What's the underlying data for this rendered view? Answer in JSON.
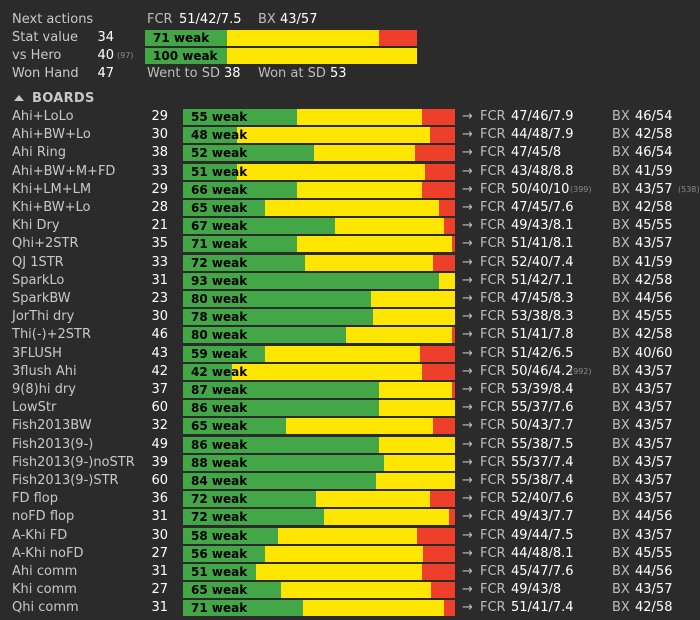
{
  "header": {
    "next_actions_label": "Next actions",
    "fcr_label": "FCR",
    "fcr_value": "51/42/7.5",
    "bx_label": "BX",
    "bx_value": "43/57",
    "stat_value_label": "Stat value",
    "stat_value": "34",
    "stat_bar": {
      "text": "71 weak",
      "green": 0.3,
      "yellow": 0.56,
      "red": 0.14
    },
    "vs_hero_label": "vs Hero",
    "vs_hero_value": "40",
    "vs_hero_sub": "(97)",
    "vs_hero_bar": {
      "text": "100 weak",
      "green": 0.3,
      "yellow": 0.7,
      "red": 0.0
    },
    "won_hand_label": "Won Hand",
    "won_hand_value": "47",
    "went_to_sd_label": "Went to SD",
    "went_to_sd_value": "38",
    "won_at_sd_label": "Won at SD",
    "won_at_sd_value": "53"
  },
  "boards_section_label": "BOARDS",
  "arrow_symbol": "→",
  "boards": [
    {
      "name": "Ahi+LoLo",
      "count": "29",
      "bar": "55 weak",
      "g": 0.42,
      "y": 0.46,
      "r": 0.12,
      "fcr": "47/46/7.9",
      "fcr_sub": "",
      "bx": "46/54",
      "bx_sub": ""
    },
    {
      "name": "Ahi+BW+Lo",
      "count": "30",
      "bar": "48 weak",
      "g": 0.2,
      "y": 0.71,
      "r": 0.09,
      "fcr": "44/48/7.9",
      "fcr_sub": "",
      "bx": "42/58",
      "bx_sub": ""
    },
    {
      "name": "Ahi Ring",
      "count": "38",
      "bar": "52 weak",
      "g": 0.48,
      "y": 0.37,
      "r": 0.15,
      "fcr": "47/45/8",
      "fcr_sub": "",
      "bx": "46/54",
      "bx_sub": ""
    },
    {
      "name": "Ahi+BW+M+FD",
      "count": "33",
      "bar": "51 weak",
      "g": 0.2,
      "y": 0.69,
      "r": 0.11,
      "fcr": "43/48/8.8",
      "fcr_sub": "",
      "bx": "41/59",
      "bx_sub": ""
    },
    {
      "name": "Khi+LM+LM",
      "count": "29",
      "bar": "66 weak",
      "g": 0.42,
      "y": 0.46,
      "r": 0.12,
      "fcr": "50/40/10",
      "fcr_sub": "(399)",
      "bx": "43/57",
      "bx_sub": "(538)"
    },
    {
      "name": "Khi+BW+Lo",
      "count": "28",
      "bar": "65 weak",
      "g": 0.3,
      "y": 0.64,
      "r": 0.06,
      "fcr": "47/45/7.6",
      "fcr_sub": "",
      "bx": "42/58",
      "bx_sub": ""
    },
    {
      "name": "Khi Dry",
      "count": "21",
      "bar": "67 weak",
      "g": 0.56,
      "y": 0.4,
      "r": 0.04,
      "fcr": "49/43/8.1",
      "fcr_sub": "",
      "bx": "45/55",
      "bx_sub": ""
    },
    {
      "name": "Qhi+2STR",
      "count": "35",
      "bar": "71 weak",
      "g": 0.42,
      "y": 0.57,
      "r": 0.01,
      "fcr": "51/41/8.1",
      "fcr_sub": "",
      "bx": "43/57",
      "bx_sub": ""
    },
    {
      "name": "QJ 1STR",
      "count": "33",
      "bar": "72 weak",
      "g": 0.45,
      "y": 0.47,
      "r": 0.08,
      "fcr": "52/40/7.4",
      "fcr_sub": "",
      "bx": "41/59",
      "bx_sub": ""
    },
    {
      "name": "SparkLo",
      "count": "31",
      "bar": "93 weak",
      "g": 0.94,
      "y": 0.06,
      "r": 0.0,
      "fcr": "51/42/7.1",
      "fcr_sub": "",
      "bx": "42/58",
      "bx_sub": ""
    },
    {
      "name": "SparkBW",
      "count": "23",
      "bar": "80 weak",
      "g": 0.69,
      "y": 0.31,
      "r": 0.0,
      "fcr": "47/45/8.3",
      "fcr_sub": "",
      "bx": "44/56",
      "bx_sub": ""
    },
    {
      "name": "JorThi dry",
      "count": "30",
      "bar": "78 weak",
      "g": 0.7,
      "y": 0.3,
      "r": 0.0,
      "fcr": "53/38/8.3",
      "fcr_sub": "",
      "bx": "45/55",
      "bx_sub": ""
    },
    {
      "name": "Thi(-)+2STR",
      "count": "46",
      "bar": "80 weak",
      "g": 0.6,
      "y": 0.39,
      "r": 0.01,
      "fcr": "51/41/7.8",
      "fcr_sub": "",
      "bx": "42/58",
      "bx_sub": ""
    },
    {
      "name": "3FLUSH",
      "count": "43",
      "bar": "59 weak",
      "g": 0.3,
      "y": 0.57,
      "r": 0.13,
      "fcr": "51/42/6.5",
      "fcr_sub": "",
      "bx": "40/60",
      "bx_sub": ""
    },
    {
      "name": "3flush Ahi",
      "count": "42",
      "bar": "42 weak",
      "g": 0.18,
      "y": 0.7,
      "r": 0.12,
      "fcr": "50/46/4.2",
      "fcr_sub": "(992)",
      "bx": "43/57",
      "bx_sub": ""
    },
    {
      "name": "9(8)hi dry",
      "count": "37",
      "bar": "87 weak",
      "g": 0.72,
      "y": 0.27,
      "r": 0.01,
      "fcr": "53/39/8.4",
      "fcr_sub": "",
      "bx": "43/57",
      "bx_sub": ""
    },
    {
      "name": "LowStr",
      "count": "60",
      "bar": "86 weak",
      "g": 0.72,
      "y": 0.28,
      "r": 0.0,
      "fcr": "55/37/7.6",
      "fcr_sub": "",
      "bx": "43/57",
      "bx_sub": ""
    },
    {
      "name": "Fish2013BW",
      "count": "32",
      "bar": "65 weak",
      "g": 0.38,
      "y": 0.54,
      "r": 0.08,
      "fcr": "50/43/7.7",
      "fcr_sub": "",
      "bx": "43/57",
      "bx_sub": ""
    },
    {
      "name": "Fish2013(9-)",
      "count": "49",
      "bar": "86 weak",
      "g": 0.72,
      "y": 0.28,
      "r": 0.0,
      "fcr": "55/38/7.5",
      "fcr_sub": "",
      "bx": "43/57",
      "bx_sub": ""
    },
    {
      "name": "Fish2013(9-)noSTR",
      "count": "39",
      "bar": "88 weak",
      "g": 0.74,
      "y": 0.26,
      "r": 0.0,
      "fcr": "55/37/7.4",
      "fcr_sub": "",
      "bx": "43/57",
      "bx_sub": ""
    },
    {
      "name": "Fish2013(9-)STR",
      "count": "60",
      "bar": "84 weak",
      "g": 0.71,
      "y": 0.29,
      "r": 0.0,
      "fcr": "55/38/7.4",
      "fcr_sub": "",
      "bx": "43/57",
      "bx_sub": ""
    },
    {
      "name": "FD flop",
      "count": "36",
      "bar": "72 weak",
      "g": 0.49,
      "y": 0.42,
      "r": 0.09,
      "fcr": "52/40/7.6",
      "fcr_sub": "",
      "bx": "43/57",
      "bx_sub": ""
    },
    {
      "name": "noFD flop",
      "count": "31",
      "bar": "72 weak",
      "g": 0.52,
      "y": 0.46,
      "r": 0.02,
      "fcr": "49/43/7.7",
      "fcr_sub": "",
      "bx": "44/56",
      "bx_sub": ""
    },
    {
      "name": "A-Khi FD",
      "count": "30",
      "bar": "58 weak",
      "g": 0.35,
      "y": 0.51,
      "r": 0.14,
      "fcr": "49/44/7.5",
      "fcr_sub": "",
      "bx": "43/57",
      "bx_sub": ""
    },
    {
      "name": "A-Khi noFD",
      "count": "27",
      "bar": "56 weak",
      "g": 0.3,
      "y": 0.58,
      "r": 0.12,
      "fcr": "44/48/8.1",
      "fcr_sub": "",
      "bx": "45/55",
      "bx_sub": ""
    },
    {
      "name": "Ahi comm",
      "count": "31",
      "bar": "51 weak",
      "g": 0.27,
      "y": 0.61,
      "r": 0.12,
      "fcr": "45/47/7.6",
      "fcr_sub": "",
      "bx": "44/56",
      "bx_sub": ""
    },
    {
      "name": "Khi comm",
      "count": "27",
      "bar": "65 weak",
      "g": 0.36,
      "y": 0.55,
      "r": 0.09,
      "fcr": "49/43/8",
      "fcr_sub": "",
      "bx": "43/57",
      "bx_sub": ""
    },
    {
      "name": "Qhi comm",
      "count": "31",
      "bar": "71 weak",
      "g": 0.44,
      "y": 0.52,
      "r": 0.04,
      "fcr": "51/41/7.4",
      "fcr_sub": "",
      "bx": "42/58",
      "bx_sub": ""
    }
  ],
  "colors": {
    "green": "#43a647",
    "yellow": "#ffe600",
    "red": "#ee3f2a",
    "background": "#2b2b2b"
  }
}
